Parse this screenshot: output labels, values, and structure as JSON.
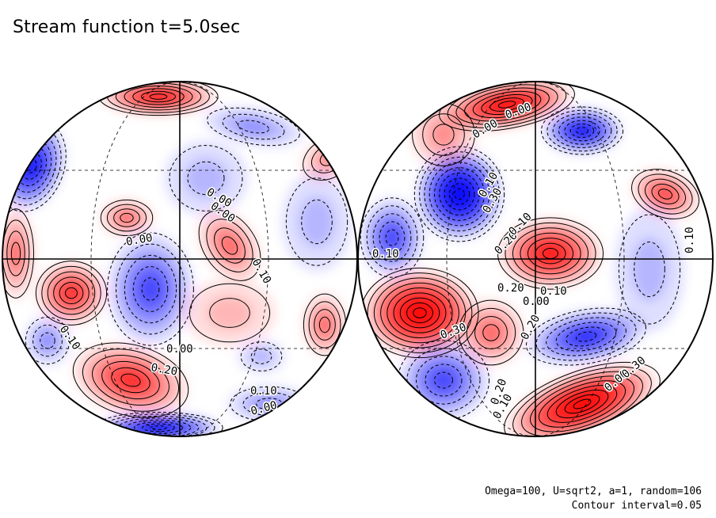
{
  "title": "Stream function t=5.0sec",
  "info": {
    "params": "Omega=100, U=sqrt2, a=1, random=106",
    "contour_interval": "Contour interval=0.05"
  },
  "colors": {
    "positive": "#ff0000",
    "negative": "#0000ff",
    "zero": "#ffffff",
    "line": "#000000"
  },
  "hemispheres": [
    {
      "id": "left",
      "contour_labels": [
        "0.00",
        "0.00",
        "0.10",
        "0.00",
        "0.10",
        "0.00",
        "0.20",
        "0.10",
        "0.00"
      ]
    },
    {
      "id": "right",
      "contour_labels": [
        "0.00",
        "0.10",
        "0.30",
        "0.00",
        "0.20",
        "0.10",
        "0.10",
        "0.20",
        "0.00",
        "0.10",
        "0.30",
        "0.20",
        "0.10",
        "0.00",
        "0.30",
        "0.20",
        "0.10"
      ]
    }
  ]
}
